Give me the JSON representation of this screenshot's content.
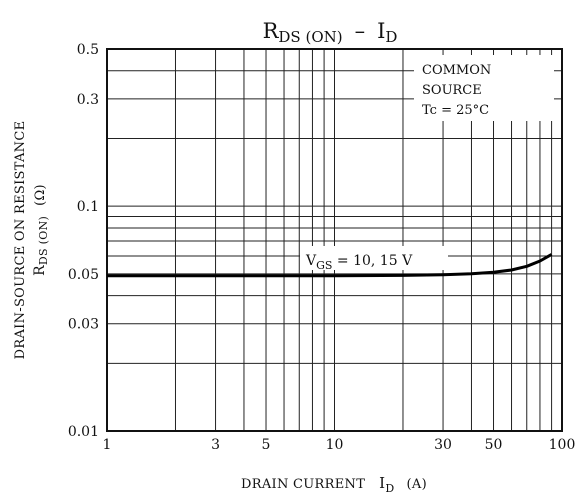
{
  "chart_data": {
    "type": "line",
    "title": {
      "prefix": "R",
      "sub": "DS (ON)",
      "sep": "–",
      "suffix": "I",
      "suffix_sub": "D"
    },
    "xlabel": {
      "text": "DRAIN CURRENT",
      "symbol": "I",
      "symbol_sub": "D",
      "unit": "(A)"
    },
    "ylabel": {
      "line1": "DRAIN-SOURCE ON RESISTANCE",
      "symbol": "R",
      "symbol_sub": "DS (ON)",
      "unit": "(Ω)"
    },
    "xscale": "log",
    "yscale": "log",
    "xlim": [
      1,
      100
    ],
    "ylim": [
      0.01,
      0.5
    ],
    "x_ticks": [
      {
        "value": 1,
        "label": "1"
      },
      {
        "value": 3,
        "label": "3"
      },
      {
        "value": 5,
        "label": "5"
      },
      {
        "value": 10,
        "label": "10"
      },
      {
        "value": 30,
        "label": "30"
      },
      {
        "value": 50,
        "label": "50"
      },
      {
        "value": 100,
        "label": "100"
      }
    ],
    "y_ticks": [
      {
        "value": 0.01,
        "label": "0.01"
      },
      {
        "value": 0.03,
        "label": "0.03"
      },
      {
        "value": 0.05,
        "label": "0.05"
      },
      {
        "value": 0.1,
        "label": "0.1"
      },
      {
        "value": 0.3,
        "label": "0.3"
      },
      {
        "value": 0.5,
        "label": "0.5"
      }
    ],
    "x_grid": [
      2,
      3,
      4,
      5,
      6,
      7,
      8,
      9,
      10,
      20,
      30,
      40,
      50,
      60,
      70,
      80,
      90
    ],
    "y_grid": [
      0.02,
      0.03,
      0.04,
      0.05,
      0.06,
      0.07,
      0.08,
      0.09,
      0.1,
      0.2,
      0.3,
      0.4
    ],
    "grid": true,
    "conditions": {
      "line1": "COMMON",
      "line2": "SOURCE",
      "line3": "Tc = 25°C"
    },
    "series": [
      {
        "name": "VGS = 10, 15 V",
        "label_parts": {
          "v": "V",
          "sub": "GS",
          "rest": " = 10, 15 V"
        },
        "x": [
          1,
          2,
          5,
          10,
          20,
          30,
          40,
          50,
          60,
          70,
          80,
          90
        ],
        "y": [
          0.049,
          0.049,
          0.049,
          0.049,
          0.0492,
          0.0495,
          0.05,
          0.0508,
          0.052,
          0.054,
          0.057,
          0.061
        ]
      }
    ]
  }
}
